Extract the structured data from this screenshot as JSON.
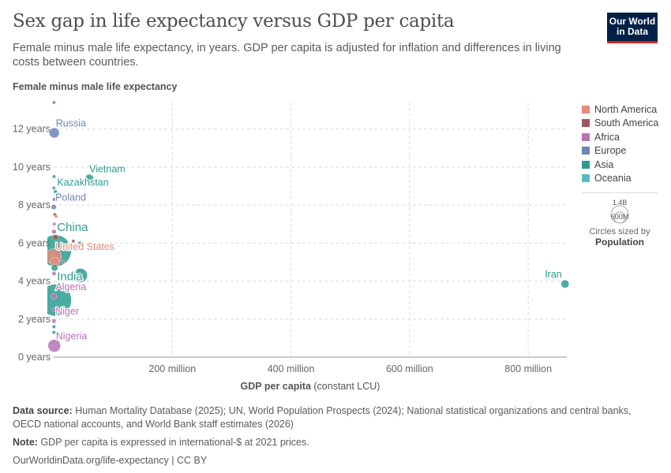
{
  "header": {
    "title": "Sex gap in life expectancy versus GDP per capita",
    "subtitle": "Female minus male life expectancy, in years. GDP per capita is adjusted for inflation and differences in living costs between countries.",
    "logo": "Our World in Data"
  },
  "chart_data": {
    "type": "scatter",
    "title": "Sex gap in life expectancy versus GDP per capita",
    "ylabel": "Female minus male life expectancy",
    "xlabel": "GDP per capita",
    "xlabel_unit": "(constant LCU)",
    "xlim": [
      0,
      865000000
    ],
    "ylim": [
      0,
      13.4
    ],
    "xticks": [
      {
        "v": 200000000,
        "label": "200 million"
      },
      {
        "v": 400000000,
        "label": "400 million"
      },
      {
        "v": 600000000,
        "label": "600 million"
      },
      {
        "v": 800000000,
        "label": "800 million"
      }
    ],
    "yticks": [
      {
        "v": 0,
        "label": "0 years"
      },
      {
        "v": 2,
        "label": "2 years"
      },
      {
        "v": 4,
        "label": "4 years"
      },
      {
        "v": 6,
        "label": "6 years"
      },
      {
        "v": 8,
        "label": "8 years"
      },
      {
        "v": 10,
        "label": "10 years"
      },
      {
        "v": 12,
        "label": "12 years"
      }
    ],
    "grid": true,
    "size_variable": "Population",
    "size_legend": [
      "1.4B",
      "600M"
    ],
    "size_legend_caption": "Circles sized by",
    "legend_position": "right",
    "regions": [
      {
        "name": "North America",
        "color": "#E8897B"
      },
      {
        "name": "South America",
        "color": "#A2555F"
      },
      {
        "name": "Africa",
        "color": "#B673B4"
      },
      {
        "name": "Europe",
        "color": "#6D84B4"
      },
      {
        "name": "Asia",
        "color": "#2C9C8F"
      },
      {
        "name": "Oceania",
        "color": "#58B9C7"
      }
    ],
    "points": [
      {
        "label": "",
        "x": 500000,
        "y": 13.4,
        "region": "Europe",
        "pop": 4
      },
      {
        "label": "Russia",
        "x": 1000000,
        "y": 11.8,
        "region": "Europe",
        "pop": 144
      },
      {
        "label": "Vietnam",
        "x": 60000000,
        "y": 9.4,
        "region": "Asia",
        "pop": 100
      },
      {
        "label": "",
        "x": 12000000,
        "y": 9.2,
        "region": "Asia",
        "pop": 3
      },
      {
        "label": "",
        "x": 500000,
        "y": 9.5,
        "region": "Asia",
        "pop": 6
      },
      {
        "label": "",
        "x": 300000,
        "y": 8.9,
        "region": "Europe",
        "pop": 4
      },
      {
        "label": "Kazakhstan",
        "x": 3000000,
        "y": 8.7,
        "region": "Asia",
        "pop": 20
      },
      {
        "label": "",
        "x": 800000,
        "y": 8.3,
        "region": "Europe",
        "pop": 5
      },
      {
        "label": "Poland",
        "x": 100000,
        "y": 7.9,
        "region": "Europe",
        "pop": 37
      },
      {
        "label": "",
        "x": 2000000,
        "y": 7.5,
        "region": "South America",
        "pop": 6
      },
      {
        "label": "",
        "x": 4000000,
        "y": 7.4,
        "region": "North America",
        "pop": 4
      },
      {
        "label": "",
        "x": 1000000,
        "y": 7.0,
        "region": "Africa",
        "pop": 8
      },
      {
        "label": "",
        "x": 500000,
        "y": 6.6,
        "region": "Africa",
        "pop": 30
      },
      {
        "label": "",
        "x": 3000000,
        "y": 6.3,
        "region": "South America",
        "pop": 45
      },
      {
        "label": "",
        "x": 33000000,
        "y": 6.1,
        "region": "South America",
        "pop": 3
      },
      {
        "label": "",
        "x": 44000000,
        "y": 6.0,
        "region": "Asia",
        "pop": 10
      },
      {
        "label": "China",
        "x": 3000000,
        "y": 5.6,
        "region": "Asia",
        "pop": 1410
      },
      {
        "label": "United States",
        "x": 80000,
        "y": 5.3,
        "region": "North America",
        "pop": 335
      },
      {
        "label": "",
        "x": 2000000,
        "y": 5.0,
        "region": "North America",
        "pop": 130
      },
      {
        "label": "",
        "x": 16000000,
        "y": 5.0,
        "region": "Africa",
        "pop": 5
      },
      {
        "label": "",
        "x": 1500000,
        "y": 4.7,
        "region": "Asia",
        "pop": 60
      },
      {
        "label": "",
        "x": 45000000,
        "y": 4.3,
        "region": "Asia",
        "pop": 277
      },
      {
        "label": "",
        "x": 500000,
        "y": 4.4,
        "region": "Africa",
        "pop": 25
      },
      {
        "label": "",
        "x": 20000000,
        "y": 3.6,
        "region": "Asia",
        "pop": 4
      },
      {
        "label": "India",
        "x": 3000000,
        "y": 3.0,
        "region": "Asia",
        "pop": 1430
      },
      {
        "label": "Algeria",
        "x": 500000,
        "y": 3.2,
        "region": "Africa",
        "pop": 45
      },
      {
        "label": "",
        "x": 1000000,
        "y": 2.5,
        "region": "Africa",
        "pop": 15
      },
      {
        "label": "Niger",
        "x": 300000,
        "y": 1.9,
        "region": "Africa",
        "pop": 27
      },
      {
        "label": "",
        "x": 500000,
        "y": 1.6,
        "region": "Asia",
        "pop": 3
      },
      {
        "label": "",
        "x": 300000,
        "y": 1.3,
        "region": "Asia",
        "pop": 2
      },
      {
        "label": "Nigeria",
        "x": 1000000,
        "y": 0.6,
        "region": "Africa",
        "pop": 225
      },
      {
        "label": "Iran",
        "x": 862000000,
        "y": 3.85,
        "region": "Asia",
        "pop": 89
      }
    ]
  },
  "footer": {
    "source_label": "Data source:",
    "source": "Human Mortality Database (2025); UN, World Population Prospects (2024); National statistical organizations and central banks, OECD national accounts, and World Bank staff estimates (2026)",
    "note_label": "Note:",
    "note": "GDP per capita is expressed in international-$ at 2021 prices.",
    "credit": "OurWorldinData.org/life-expectancy | CC BY"
  }
}
